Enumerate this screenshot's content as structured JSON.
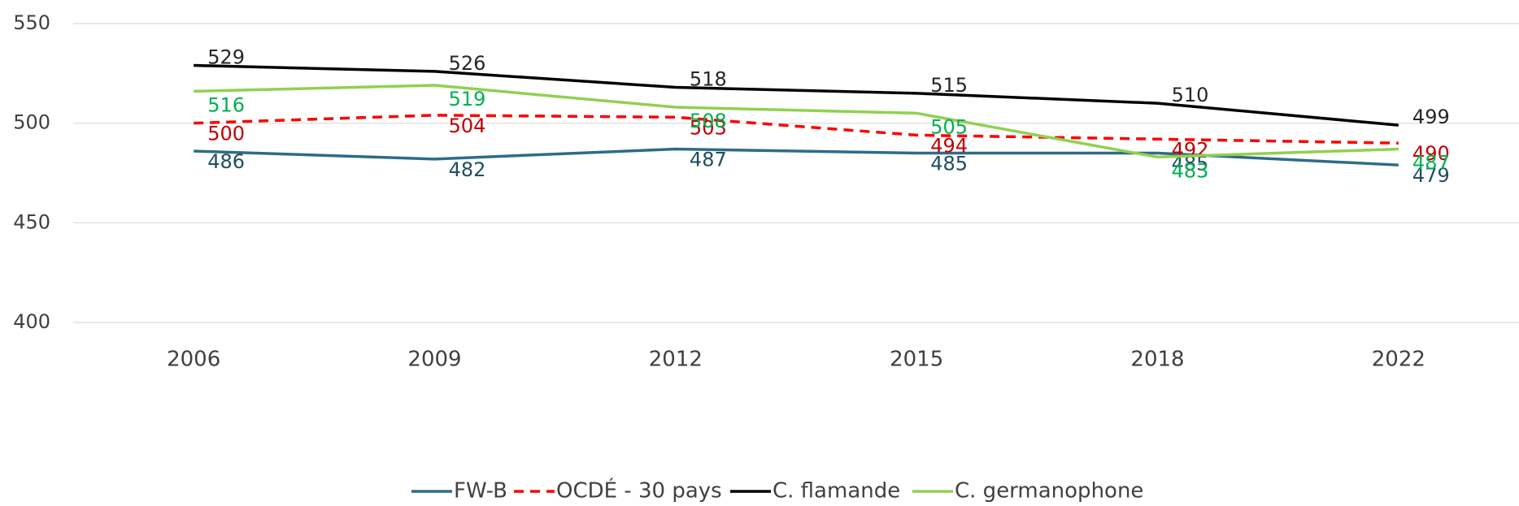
{
  "chart_data": {
    "type": "line",
    "categories": [
      "2006",
      "2009",
      "2012",
      "2015",
      "2018",
      "2022"
    ],
    "series": [
      {
        "name": "FW-B",
        "color": "#2e6b8a",
        "label_color": "#1f4e5f",
        "dashed": false,
        "values": [
          486,
          482,
          487,
          485,
          485,
          479
        ]
      },
      {
        "name": "OCDÉ - 30 pays",
        "color": "#ff0000",
        "label_color": "#c00000",
        "dashed": true,
        "values": [
          500,
          504,
          503,
          494,
          492,
          490
        ]
      },
      {
        "name": "C. flamande",
        "color": "#000000",
        "label_color": "#262626",
        "dashed": false,
        "values": [
          529,
          526,
          518,
          515,
          510,
          499
        ]
      },
      {
        "name": "C. germanophone",
        "color": "#92d050",
        "label_color": "#00b050",
        "dashed": false,
        "values": [
          516,
          519,
          508,
          505,
          483,
          487
        ]
      }
    ],
    "ylim": [
      400,
      550
    ],
    "yticks": [
      400,
      450,
      500,
      550
    ],
    "grid": true,
    "legend": "bottom"
  }
}
